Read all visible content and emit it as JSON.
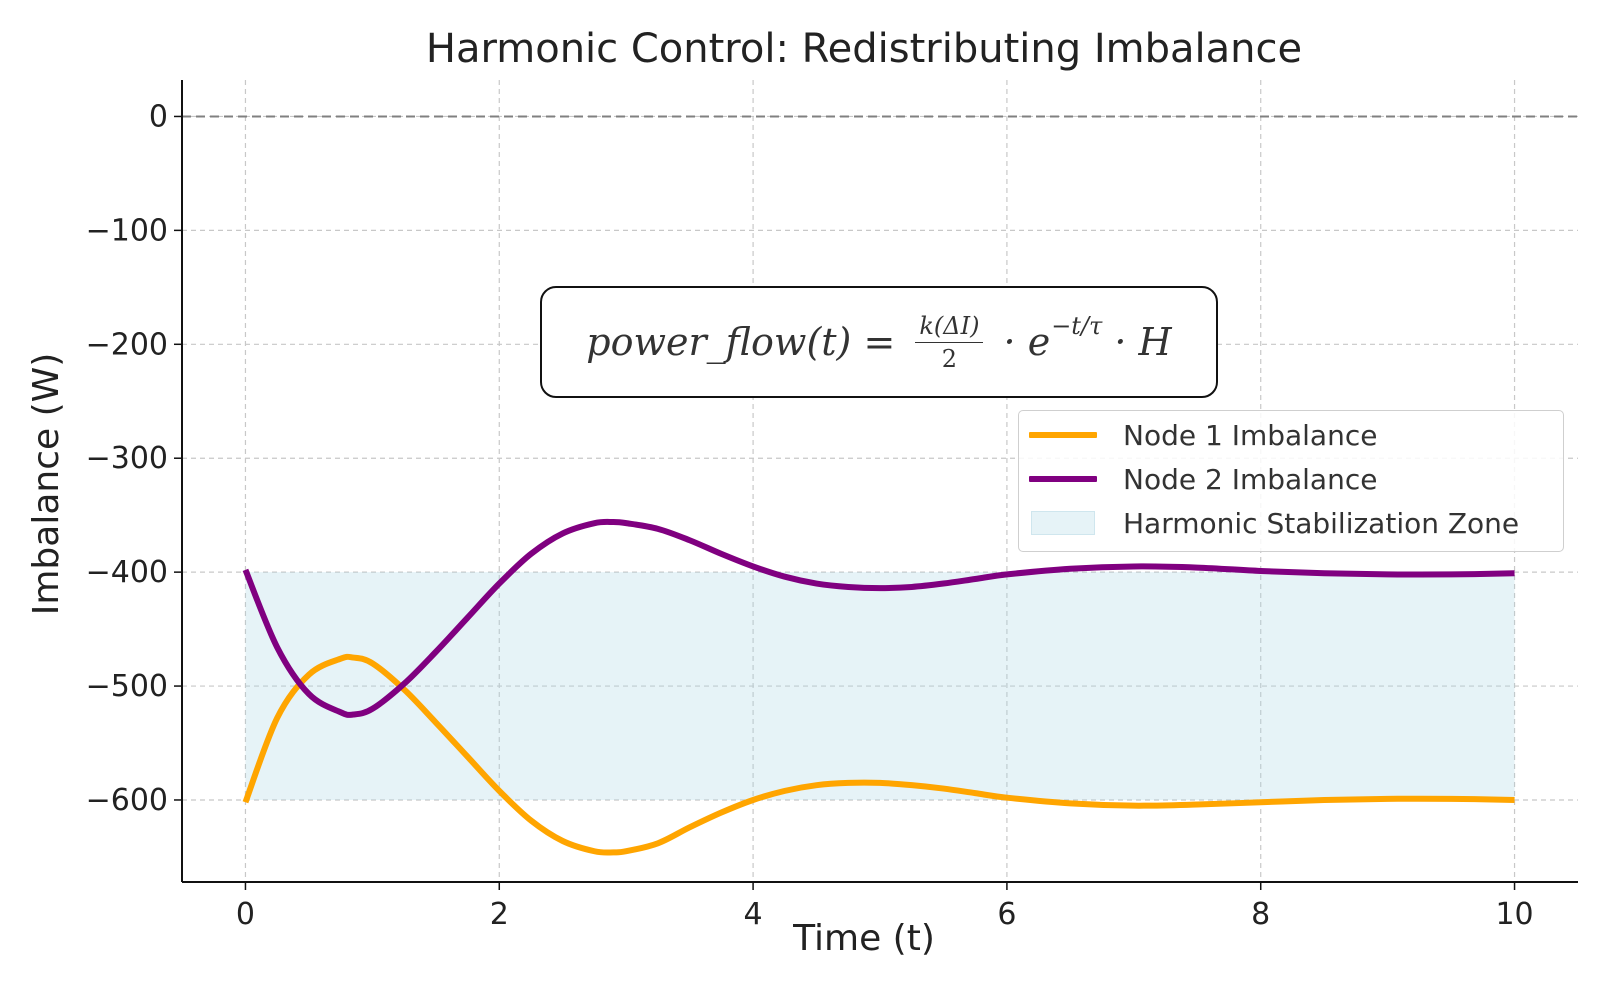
{
  "chart_data": {
    "type": "line",
    "title": "Harmonic Control: Redistributing Imbalance",
    "xlabel": "Time (t)",
    "ylabel": "Imbalance (W)",
    "xlim": [
      -0.5,
      10.5
    ],
    "ylim": [
      -672,
      32
    ],
    "xticks": [
      0,
      2,
      4,
      6,
      8,
      10
    ],
    "xtick_labels": [
      "0",
      "2",
      "4",
      "6",
      "8",
      "10"
    ],
    "yticks": [
      0,
      -100,
      -200,
      -300,
      -400,
      -500,
      -600
    ],
    "ytick_labels": [
      "0",
      "−100",
      "−200",
      "−300",
      "−400",
      "−500",
      "−600"
    ],
    "grid": true,
    "reference_line": {
      "y": 0,
      "style": "dashed",
      "color": "#808080"
    },
    "zone": {
      "name": "Harmonic Stabilization Zone",
      "x": [
        0,
        10
      ],
      "y": [
        -600,
        -400
      ],
      "color": "#add8e6"
    },
    "series": [
      {
        "name": "Node 1 Imbalance",
        "color": "#ffa500",
        "x": [
          0,
          0.25,
          0.5,
          0.75,
          0.85,
          1.0,
          1.25,
          1.5,
          1.75,
          2.0,
          2.25,
          2.5,
          2.75,
          2.9,
          3.0,
          3.25,
          3.5,
          3.75,
          4.0,
          4.25,
          4.5,
          4.75,
          5.0,
          5.25,
          5.5,
          5.75,
          6.0,
          6.5,
          7.0,
          7.5,
          8.0,
          8.5,
          9.0,
          9.5,
          10.0
        ],
        "values": [
          -602,
          -528,
          -490,
          -476,
          -475,
          -480,
          -503,
          -532,
          -562,
          -592,
          -618,
          -636,
          -645,
          -646,
          -645,
          -638,
          -624,
          -611,
          -600,
          -592,
          -587,
          -585,
          -585,
          -587,
          -590,
          -594,
          -598,
          -603,
          -605,
          -604,
          -602,
          -600,
          -599,
          -599,
          -600
        ]
      },
      {
        "name": "Node 2 Imbalance",
        "color": "#800080",
        "x": [
          0,
          0.25,
          0.5,
          0.75,
          0.85,
          1.0,
          1.25,
          1.5,
          1.75,
          2.0,
          2.25,
          2.5,
          2.75,
          2.9,
          3.0,
          3.25,
          3.5,
          3.75,
          4.0,
          4.25,
          4.5,
          4.75,
          5.0,
          5.25,
          5.5,
          5.75,
          6.0,
          6.5,
          7.0,
          7.5,
          8.0,
          8.5,
          9.0,
          9.5,
          10.0
        ],
        "values": [
          -398,
          -466,
          -507,
          -523,
          -525,
          -520,
          -498,
          -470,
          -440,
          -410,
          -384,
          -366,
          -357,
          -356,
          -357,
          -362,
          -372,
          -384,
          -395,
          -404,
          -410,
          -413,
          -414,
          -413,
          -410,
          -406,
          -402,
          -397,
          -395,
          -396,
          -399,
          -401,
          -402,
          -402,
          -401
        ]
      }
    ],
    "annotation": {
      "lhs": "power_flow",
      "arg": "(t)",
      "eq": " = ",
      "frac_num": "k(ΔI)",
      "frac_den": "2",
      "dot1": " · e",
      "exp": "−t/τ",
      "dot2": " · H"
    }
  }
}
